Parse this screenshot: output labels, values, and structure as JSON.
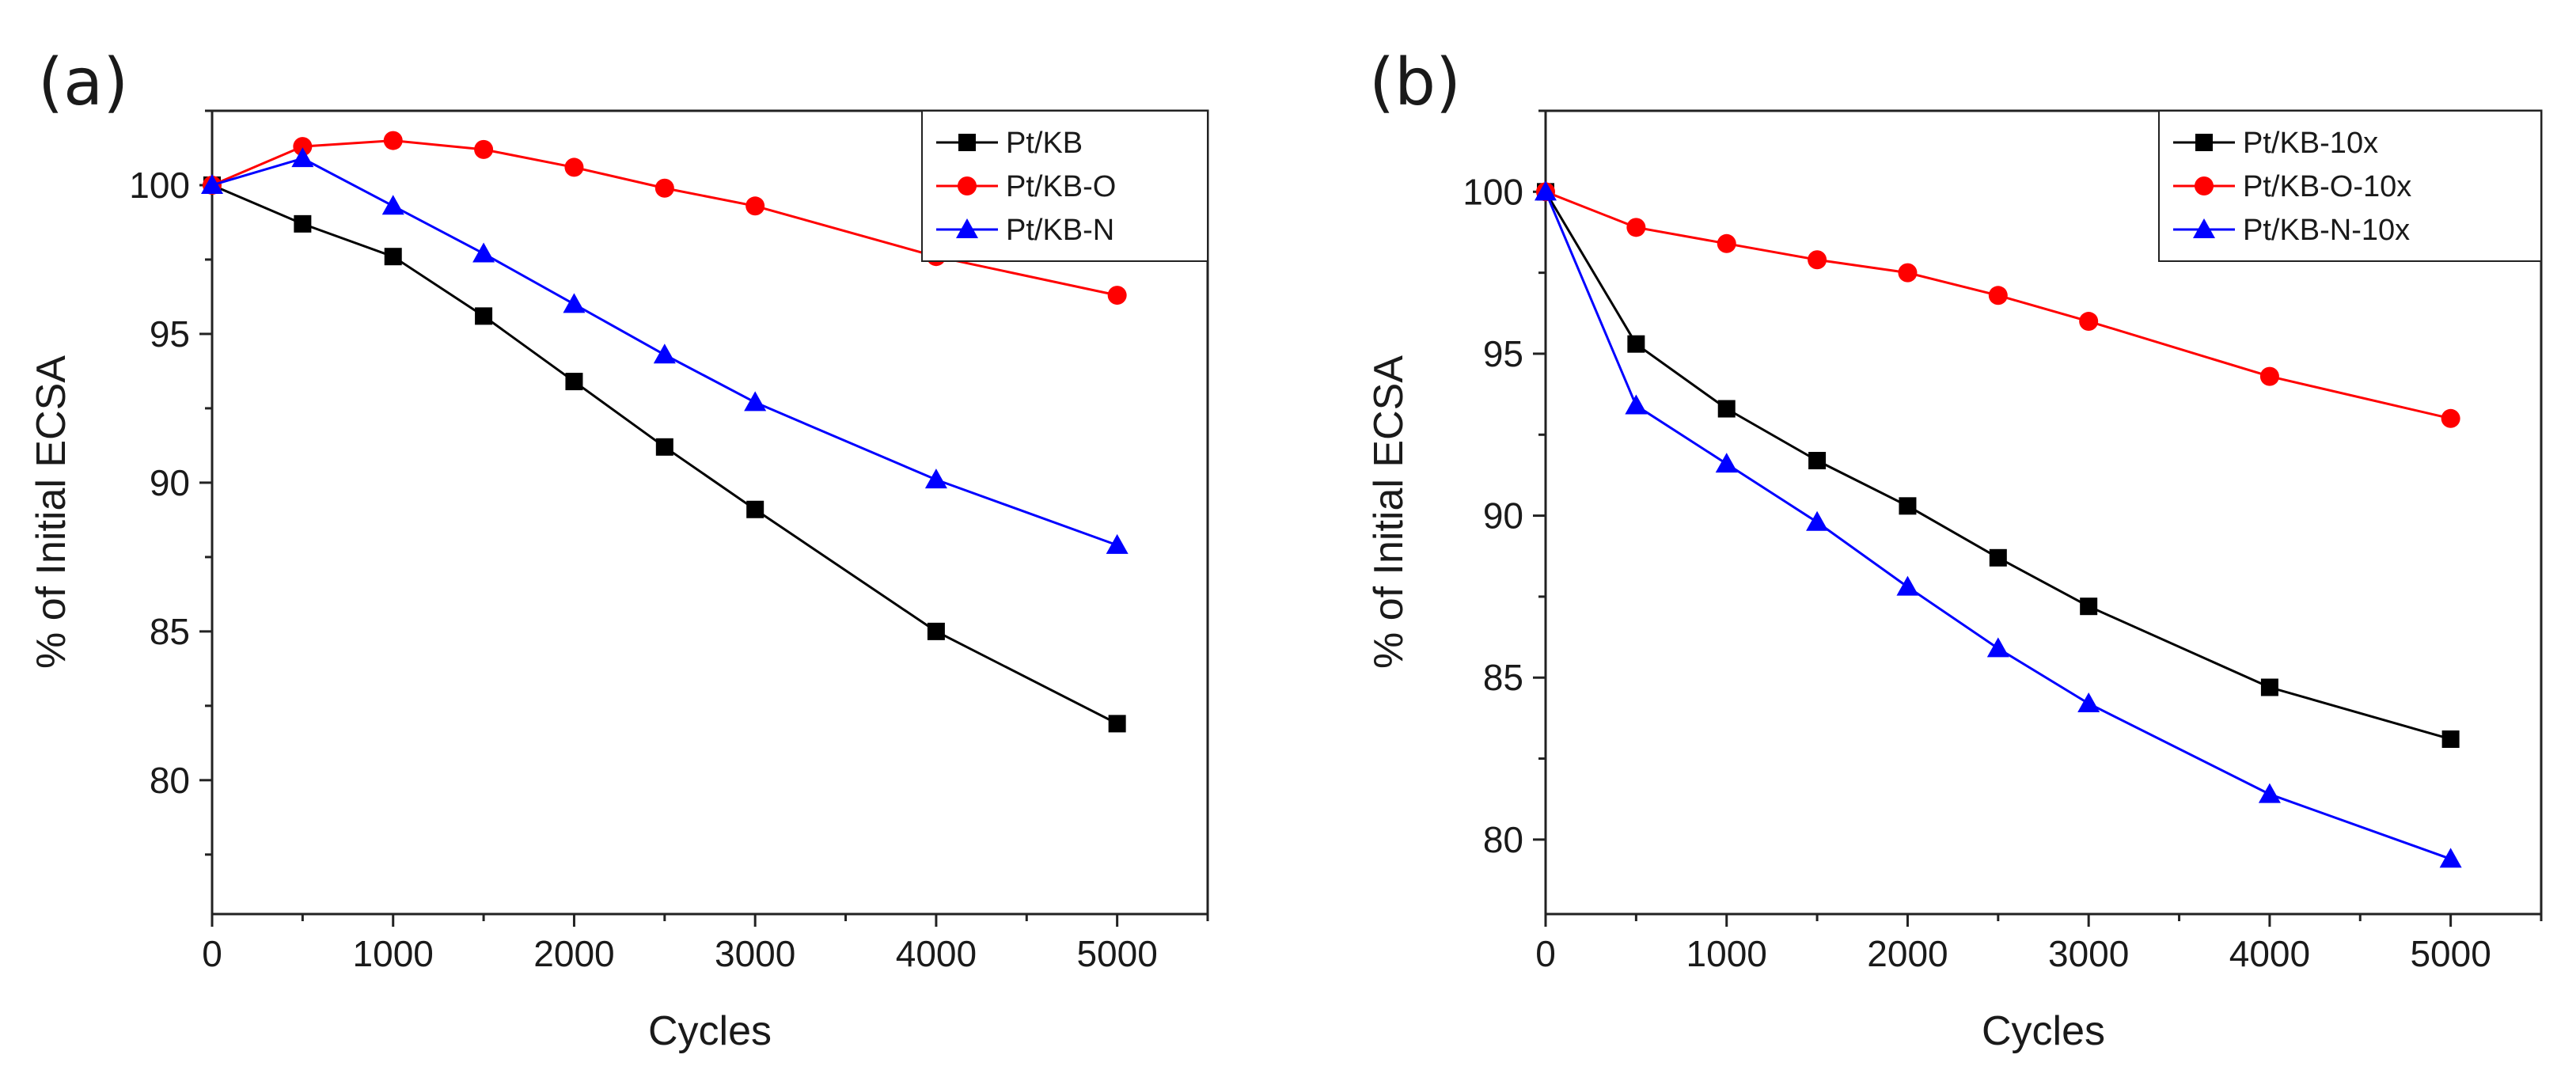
{
  "chart_data": [
    {
      "panel_label": "(a)",
      "type": "line",
      "xlabel": "Cycles",
      "ylabel": "% of Initial ECSA",
      "xlim": [
        0,
        5500
      ],
      "ylim": [
        75.5,
        102.5
      ],
      "xticks": [
        0,
        1000,
        2000,
        3000,
        4000,
        5000
      ],
      "yticks": [
        80,
        85,
        90,
        95,
        100
      ],
      "x": [
        0,
        500,
        1000,
        1500,
        2000,
        2500,
        3000,
        4000,
        5000
      ],
      "series": [
        {
          "name": "Pt/KB",
          "color": "#000000",
          "marker": "square",
          "values": [
            100,
            98.7,
            97.6,
            95.6,
            93.4,
            91.2,
            89.1,
            85.0,
            81.9
          ]
        },
        {
          "name": "Pt/KB-O",
          "color": "#ff0000",
          "marker": "circle",
          "values": [
            100,
            101.3,
            101.5,
            101.2,
            100.6,
            99.9,
            99.3,
            97.6,
            96.3
          ]
        },
        {
          "name": "Pt/KB-N",
          "color": "#0000ff",
          "marker": "triangle",
          "values": [
            100,
            100.9,
            99.3,
            97.7,
            96.0,
            94.3,
            92.7,
            90.1,
            87.9
          ]
        }
      ],
      "legend_position": "top-right"
    },
    {
      "panel_label": "(b)",
      "type": "line",
      "xlabel": "Cycles",
      "ylabel": "% of Initial ECSA",
      "xlim": [
        0,
        5500
      ],
      "ylim": [
        77.7,
        102.5
      ],
      "xticks": [
        0,
        1000,
        2000,
        3000,
        4000,
        5000
      ],
      "yticks": [
        80,
        85,
        90,
        95,
        100
      ],
      "x": [
        0,
        500,
        1000,
        1500,
        2000,
        2500,
        3000,
        4000,
        5000
      ],
      "series": [
        {
          "name": "Pt/KB-10x",
          "color": "#000000",
          "marker": "square",
          "values": [
            100,
            95.3,
            93.3,
            91.7,
            90.3,
            88.7,
            87.2,
            84.7,
            83.1
          ]
        },
        {
          "name": "Pt/KB-O-10x",
          "color": "#ff0000",
          "marker": "circle",
          "values": [
            100,
            98.9,
            98.4,
            97.9,
            97.5,
            96.8,
            96.0,
            94.3,
            93.0
          ]
        },
        {
          "name": "Pt/KB-N-10x",
          "color": "#0000ff",
          "marker": "triangle",
          "values": [
            100,
            93.4,
            91.6,
            89.8,
            87.8,
            85.9,
            84.2,
            81.4,
            79.4
          ]
        }
      ],
      "legend_position": "top-right"
    }
  ]
}
